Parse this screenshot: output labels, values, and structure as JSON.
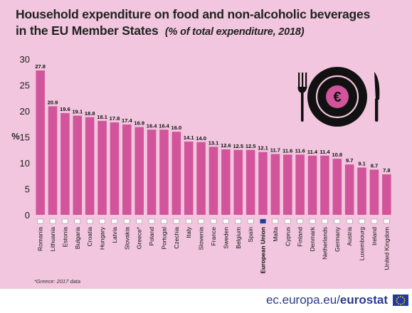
{
  "header": {
    "title_line1": "Household expenditure on food and non-alcoholic beverages",
    "title_line2": "in the EU Member States",
    "title_sub": "(% of total expenditure, 2018)"
  },
  "footnote": "*Greece: 2017 data",
  "footer": {
    "prefix": "ec.europa.eu/",
    "brand": "eurostat"
  },
  "colors": {
    "bar": "#d2549a",
    "background": "#f1c6de",
    "icon": "#111111",
    "euro": "#d2549a"
  },
  "icon": "plate-fork-knife-euro-icon",
  "chart_data": {
    "type": "bar",
    "ylabel": "%",
    "ylim": [
      0,
      30
    ],
    "yticks": [
      0,
      5,
      10,
      15,
      20,
      25,
      30
    ],
    "categories": [
      "Romania",
      "Lithuania",
      "Estonia",
      "Bulgaria",
      "Croatia",
      "Hungary",
      "Latvia",
      "Slovakia",
      "Greece*",
      "Poland",
      "Portugal",
      "Czechia",
      "Italy",
      "Slovenia",
      "France",
      "Sweden",
      "Belgium",
      "Spain",
      "European Union",
      "Malta",
      "Cyprus",
      "Finland",
      "Denmark",
      "Netherlands",
      "Germany",
      "Austria",
      "Luxembourg",
      "Ireland",
      "United Kingdom"
    ],
    "values": [
      27.8,
      20.9,
      19.6,
      19.1,
      18.8,
      18.1,
      17.8,
      17.4,
      16.9,
      16.4,
      16.4,
      16.0,
      14.1,
      14.0,
      13.1,
      12.6,
      12.5,
      12.5,
      12.1,
      11.7,
      11.6,
      11.6,
      11.4,
      11.4,
      10.8,
      9.7,
      9.1,
      8.7,
      7.8
    ],
    "value_labels": [
      "27.8",
      "20.9",
      "19.6",
      "19.1",
      "18.8",
      "18.1",
      "17.8",
      "17.4",
      "16.9",
      "16.4",
      "16.4",
      "16.0",
      "14.1",
      "14.0",
      "13.1",
      "12.6",
      "12.5",
      "12.5",
      "12.1",
      "11.7",
      "11.6",
      "11.6",
      "11.4",
      "11.4",
      "10.8",
      "9.7",
      "9.1",
      "8.7",
      "7.8"
    ],
    "highlight": "European Union",
    "grid": false
  }
}
